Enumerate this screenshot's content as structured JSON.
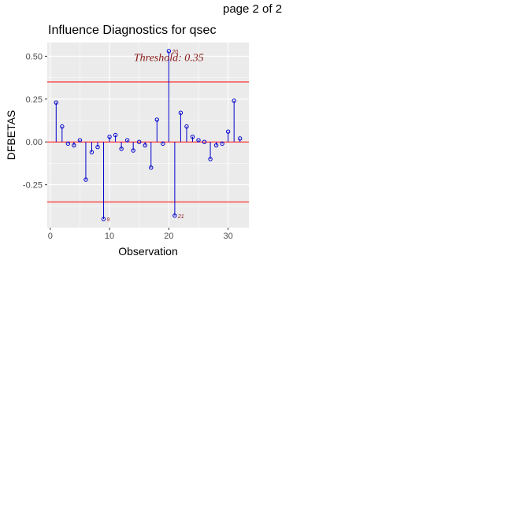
{
  "page_label": "page 2 of 2",
  "chart_data": {
    "type": "scatter",
    "style": "needle/lollipop",
    "title": "Influence Diagnostics for qsec",
    "xlabel": "Observation",
    "ylabel": "DFBETAS",
    "xlim": [
      0,
      34
    ],
    "ylim": [
      -0.5,
      0.58
    ],
    "xticks": [
      0,
      10,
      20,
      30
    ],
    "xtick_labels": [
      "0",
      "10",
      "20",
      "30"
    ],
    "yticks": [
      -0.25,
      0,
      0.25,
      0.5
    ],
    "ytick_labels": [
      "-0.25",
      "0.00",
      "0.25",
      "0.50"
    ],
    "grid": true,
    "threshold": 0.35,
    "threshold_label": "Threshold: 0.35",
    "x": [
      1,
      2,
      3,
      4,
      5,
      6,
      7,
      8,
      9,
      10,
      11,
      12,
      13,
      14,
      15,
      16,
      17,
      18,
      19,
      20,
      21,
      22,
      23,
      24,
      25,
      26,
      27,
      28,
      29,
      30,
      31,
      32
    ],
    "values": [
      0.23,
      0.09,
      -0.01,
      -0.02,
      0.01,
      -0.22,
      -0.06,
      -0.03,
      -0.45,
      0.03,
      0.04,
      -0.04,
      0.01,
      -0.05,
      0.0,
      -0.02,
      -0.15,
      0.13,
      -0.01,
      0.53,
      -0.43,
      0.17,
      0.09,
      0.03,
      0.01,
      0.0,
      -0.1,
      -0.02,
      -0.01,
      0.06,
      0.24,
      0.02
    ],
    "outlier_labels": [
      {
        "x": 9,
        "label": "9"
      },
      {
        "x": 20,
        "label": "20"
      },
      {
        "x": 21,
        "label": "21"
      }
    ],
    "colors": {
      "panel_background": "#EBEBEB",
      "grid": "#FFFFFF",
      "points": "#0000CD",
      "threshold_line": "#FF0000",
      "threshold_text": "#8B1A1A",
      "outlier_label": "#8B1A1A",
      "axis_text": "#4D4D4D"
    }
  }
}
